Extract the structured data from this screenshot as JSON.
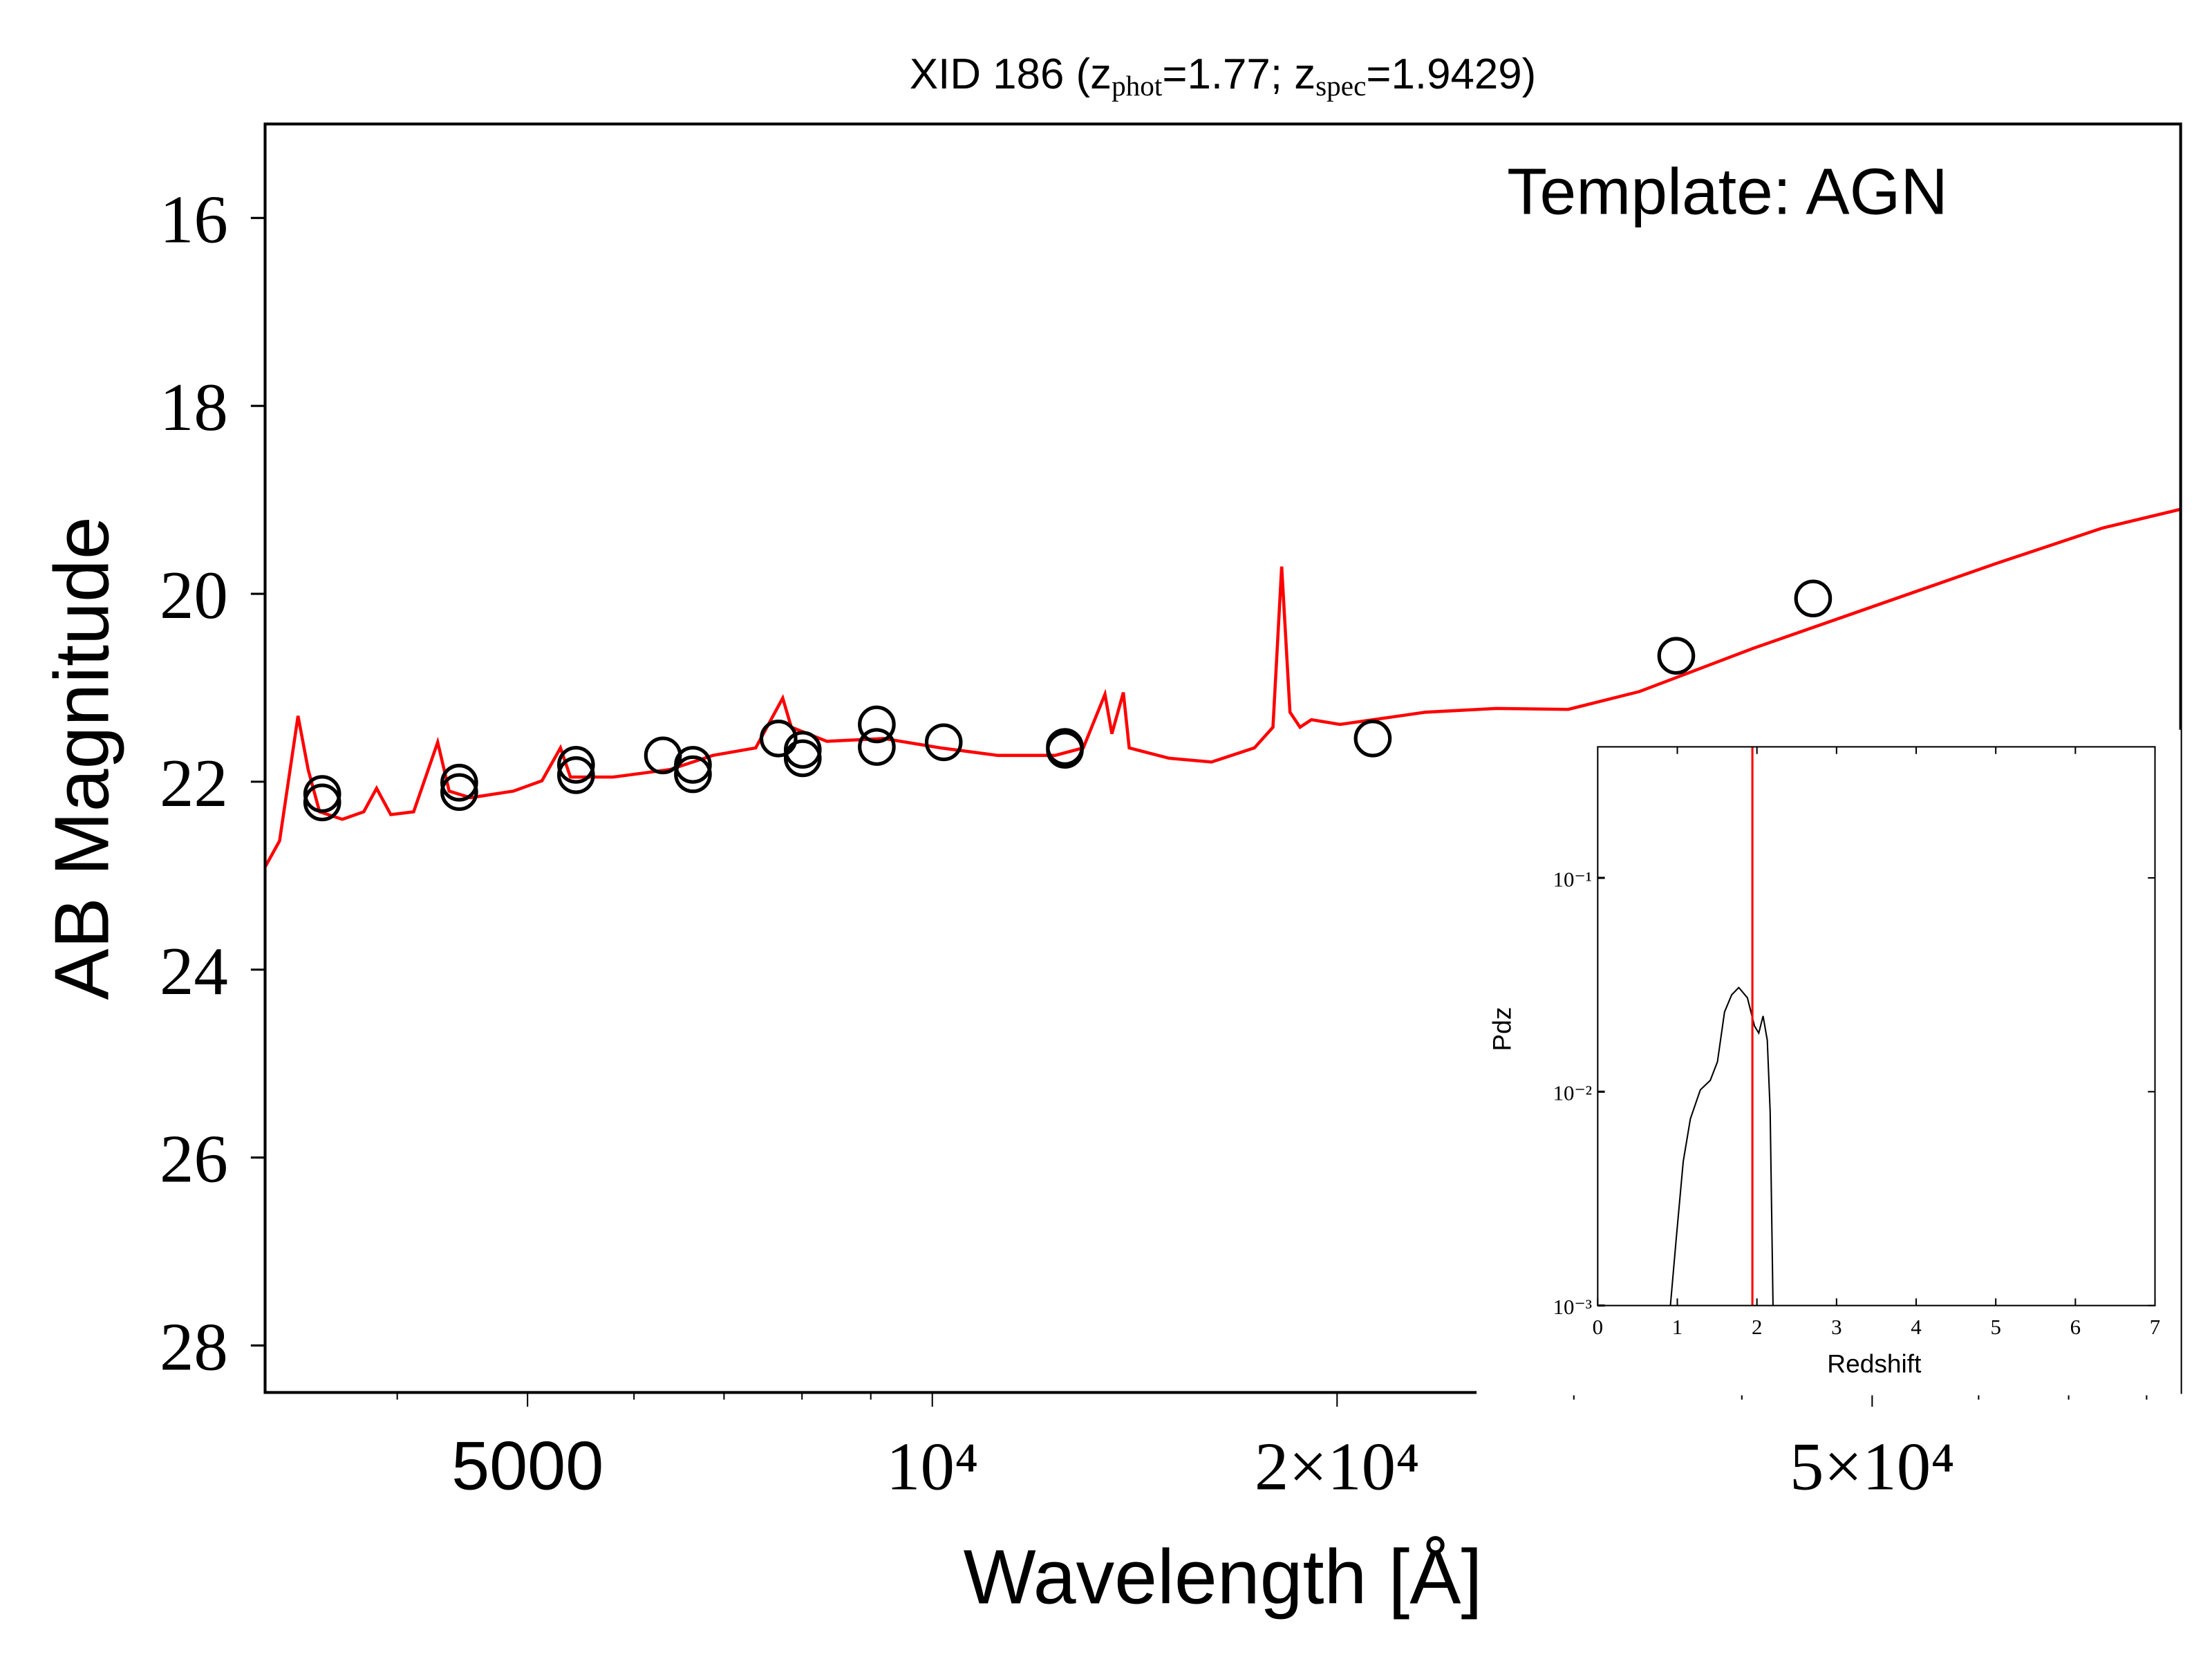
{
  "chart_data": [
    {
      "type": "line",
      "title_segments": [
        {
          "text": "XID 186 (z"
        },
        {
          "text": "phot",
          "sub": true
        },
        {
          "text": "=1.77; z"
        },
        {
          "text": "spec",
          "sub": true
        },
        {
          "text": "=1.9429)"
        }
      ],
      "annotation": "Template: AGN",
      "xlabel": "Wavelength [Å]",
      "ylabel": "AB Magnitude",
      "xscale": "log",
      "xlim": [
        3190,
        84800
      ],
      "ylim": [
        15,
        28.5
      ],
      "y_inverted": true,
      "xticks": [
        5000,
        {
          "value": 10000,
          "label": "10⁴"
        },
        {
          "value": 20000,
          "label": "2×10⁴"
        },
        {
          "value": 50000,
          "label": "5×10⁴"
        }
      ],
      "xminor_ticks": [
        4000,
        6000,
        7000,
        8000,
        9000,
        30000,
        40000,
        60000,
        70000,
        80000
      ],
      "yticks": [
        16,
        18,
        20,
        22,
        24,
        26,
        28
      ],
      "color": "#ff0000",
      "x": [
        3192,
        3270,
        3375,
        3434,
        3502,
        3641,
        3777,
        3861,
        3956,
        4114,
        4287,
        4372,
        4535,
        4880,
        5125,
        5290,
        5381,
        5790,
        6383,
        6867,
        7390,
        7740,
        7855,
        8348,
        9204,
        10147,
        11190,
        12340,
        12950,
        13440,
        13600,
        13870,
        14010,
        15000,
        16130,
        17360,
        17920,
        18190,
        18450,
        18770,
        19140,
        20100,
        23270,
        26290,
        29710,
        33570,
        40790,
        48380,
        61760,
        74180,
        84800
      ],
      "values": [
        22.9,
        22.63,
        21.3,
        21.87,
        22.32,
        22.4,
        22.32,
        22.07,
        22.35,
        22.32,
        21.58,
        22.1,
        22.17,
        22.1,
        21.99,
        21.64,
        21.95,
        21.95,
        21.87,
        21.72,
        21.64,
        21.11,
        21.42,
        21.57,
        21.54,
        21.64,
        21.72,
        21.72,
        21.64,
        21.07,
        21.49,
        21.05,
        21.64,
        21.75,
        21.79,
        21.64,
        21.42,
        19.71,
        21.26,
        21.42,
        21.34,
        21.39,
        21.26,
        21.22,
        21.23,
        21.04,
        20.58,
        20.21,
        19.68,
        19.3,
        19.1
      ],
      "scatter": {
        "marker_color": "#000000",
        "x": [
          3518,
          3518,
          4448,
          4448,
          5433,
          5433,
          6305,
          6637,
          6637,
          7685,
          8010,
          8010,
          9093,
          9093,
          10197,
          12549,
          12549,
          21260,
          35750,
          45190
        ],
        "values": [
          22.13,
          22.22,
          22.01,
          22.11,
          21.82,
          21.93,
          21.72,
          21.82,
          21.92,
          21.54,
          21.66,
          21.75,
          21.39,
          21.63,
          21.58,
          21.63,
          21.66,
          21.54,
          20.66,
          20.05
        ]
      }
    },
    {
      "type": "line",
      "xlabel": "Redshift",
      "ylabel": "Pdz",
      "xlim": [
        0,
        7
      ],
      "ylim": [
        0.001,
        0.41
      ],
      "yscale": "log",
      "xticks": [
        0,
        1,
        2,
        3,
        4,
        5,
        6,
        7
      ],
      "yticks": [
        {
          "value": 0.001,
          "label": "10⁻³"
        },
        {
          "value": 0.01,
          "label": "10⁻²"
        },
        {
          "value": 0.1,
          "label": "10⁻¹"
        }
      ],
      "color": "#000000",
      "vline": 1.9429,
      "vline_color": "#ff0000",
      "x": [
        0.913,
        0.985,
        1.074,
        1.164,
        1.289,
        1.414,
        1.504,
        1.593,
        1.683,
        1.772,
        1.88,
        1.969,
        2.023,
        2.077,
        2.13,
        2.166,
        2.202
      ],
      "values": [
        0.001,
        0.00203,
        0.00471,
        0.00747,
        0.0102,
        0.0113,
        0.0138,
        0.0236,
        0.0284,
        0.0307,
        0.0275,
        0.0203,
        0.0188,
        0.0226,
        0.0174,
        0.00807,
        0.001
      ]
    }
  ]
}
